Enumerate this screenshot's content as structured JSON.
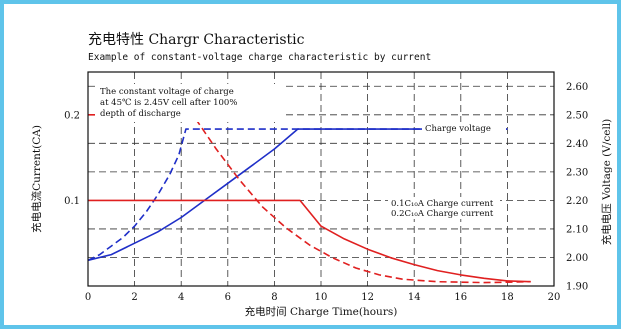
{
  "chart_data": {
    "type": "line",
    "title": "充电特性 Chargr Characteristic",
    "subtitle": "Example of constant-voltage charge characteristic by current",
    "xlabel": "充电时间 Charge Time(hours)",
    "ylabel_left": "充电电流Current(CA)",
    "ylabel_right": "充电电压 Voltage (V/cell)",
    "xlim": [
      0,
      20
    ],
    "ylim_left": [
      0,
      0.25
    ],
    "ylim_right": [
      1.9,
      2.65
    ],
    "x_ticks": [
      "0",
      "2",
      "4",
      "6",
      "8",
      "10",
      "12",
      "14",
      "16",
      "18",
      "20"
    ],
    "y_left_ticks": [
      "0.1",
      "0.2"
    ],
    "y_right_ticks": [
      "1.90",
      "2.00",
      "2.10",
      "2.20",
      "2.30",
      "2.40",
      "2.50",
      "2.60"
    ],
    "grid": true,
    "annotations": [
      "The constant voltage of charge",
      "at 45℃ is 2.45V cell after 100%",
      "depth of discharge"
    ],
    "legend": {
      "charge_voltage": "Charge voltage",
      "current_01": "0.1C₁₀A Charge current",
      "current_02": "0.2C₁₀A Charge current"
    },
    "series": [
      {
        "axis": "right",
        "color": "#1f2fc8",
        "dash": false,
        "points": [
          [
            0,
            1.99
          ],
          [
            1,
            2.01
          ],
          [
            2,
            2.05
          ],
          [
            3,
            2.09
          ],
          [
            4,
            2.14
          ],
          [
            5,
            2.2
          ],
          [
            6,
            2.26
          ],
          [
            7,
            2.32
          ],
          [
            8,
            2.38
          ],
          [
            9,
            2.45
          ],
          [
            18,
            2.45
          ]
        ]
      },
      {
        "axis": "right",
        "color": "#1f2fc8",
        "dash": true,
        "points": [
          [
            0,
            1.99
          ],
          [
            0.5,
            2.01
          ],
          [
            1,
            2.04
          ],
          [
            1.5,
            2.07
          ],
          [
            2,
            2.11
          ],
          [
            2.5,
            2.16
          ],
          [
            3,
            2.22
          ],
          [
            3.5,
            2.29
          ],
          [
            3.9,
            2.36
          ],
          [
            4.2,
            2.45
          ],
          [
            18,
            2.45
          ]
        ]
      },
      {
        "axis": "left",
        "color": "#e02020",
        "dash": false,
        "points": [
          [
            0,
            0.1
          ],
          [
            9.1,
            0.1
          ],
          [
            10,
            0.07
          ],
          [
            11,
            0.055
          ],
          [
            12,
            0.043
          ],
          [
            13,
            0.033
          ],
          [
            14,
            0.025
          ],
          [
            15,
            0.018
          ],
          [
            16,
            0.013
          ],
          [
            17,
            0.009
          ],
          [
            18,
            0.006
          ],
          [
            19,
            0.005
          ]
        ]
      },
      {
        "axis": "left",
        "color": "#e02020",
        "dash": true,
        "points": [
          [
            0,
            0.2
          ],
          [
            4.5,
            0.2
          ],
          [
            5.5,
            0.16
          ],
          [
            6.5,
            0.124
          ],
          [
            7.5,
            0.092
          ],
          [
            8.5,
            0.068
          ],
          [
            9.5,
            0.048
          ],
          [
            10.5,
            0.033
          ],
          [
            11.5,
            0.021
          ],
          [
            12.5,
            0.013
          ],
          [
            13.5,
            0.008
          ],
          [
            15,
            0.005
          ],
          [
            17,
            0.004
          ],
          [
            19,
            0.005
          ]
        ]
      }
    ]
  }
}
